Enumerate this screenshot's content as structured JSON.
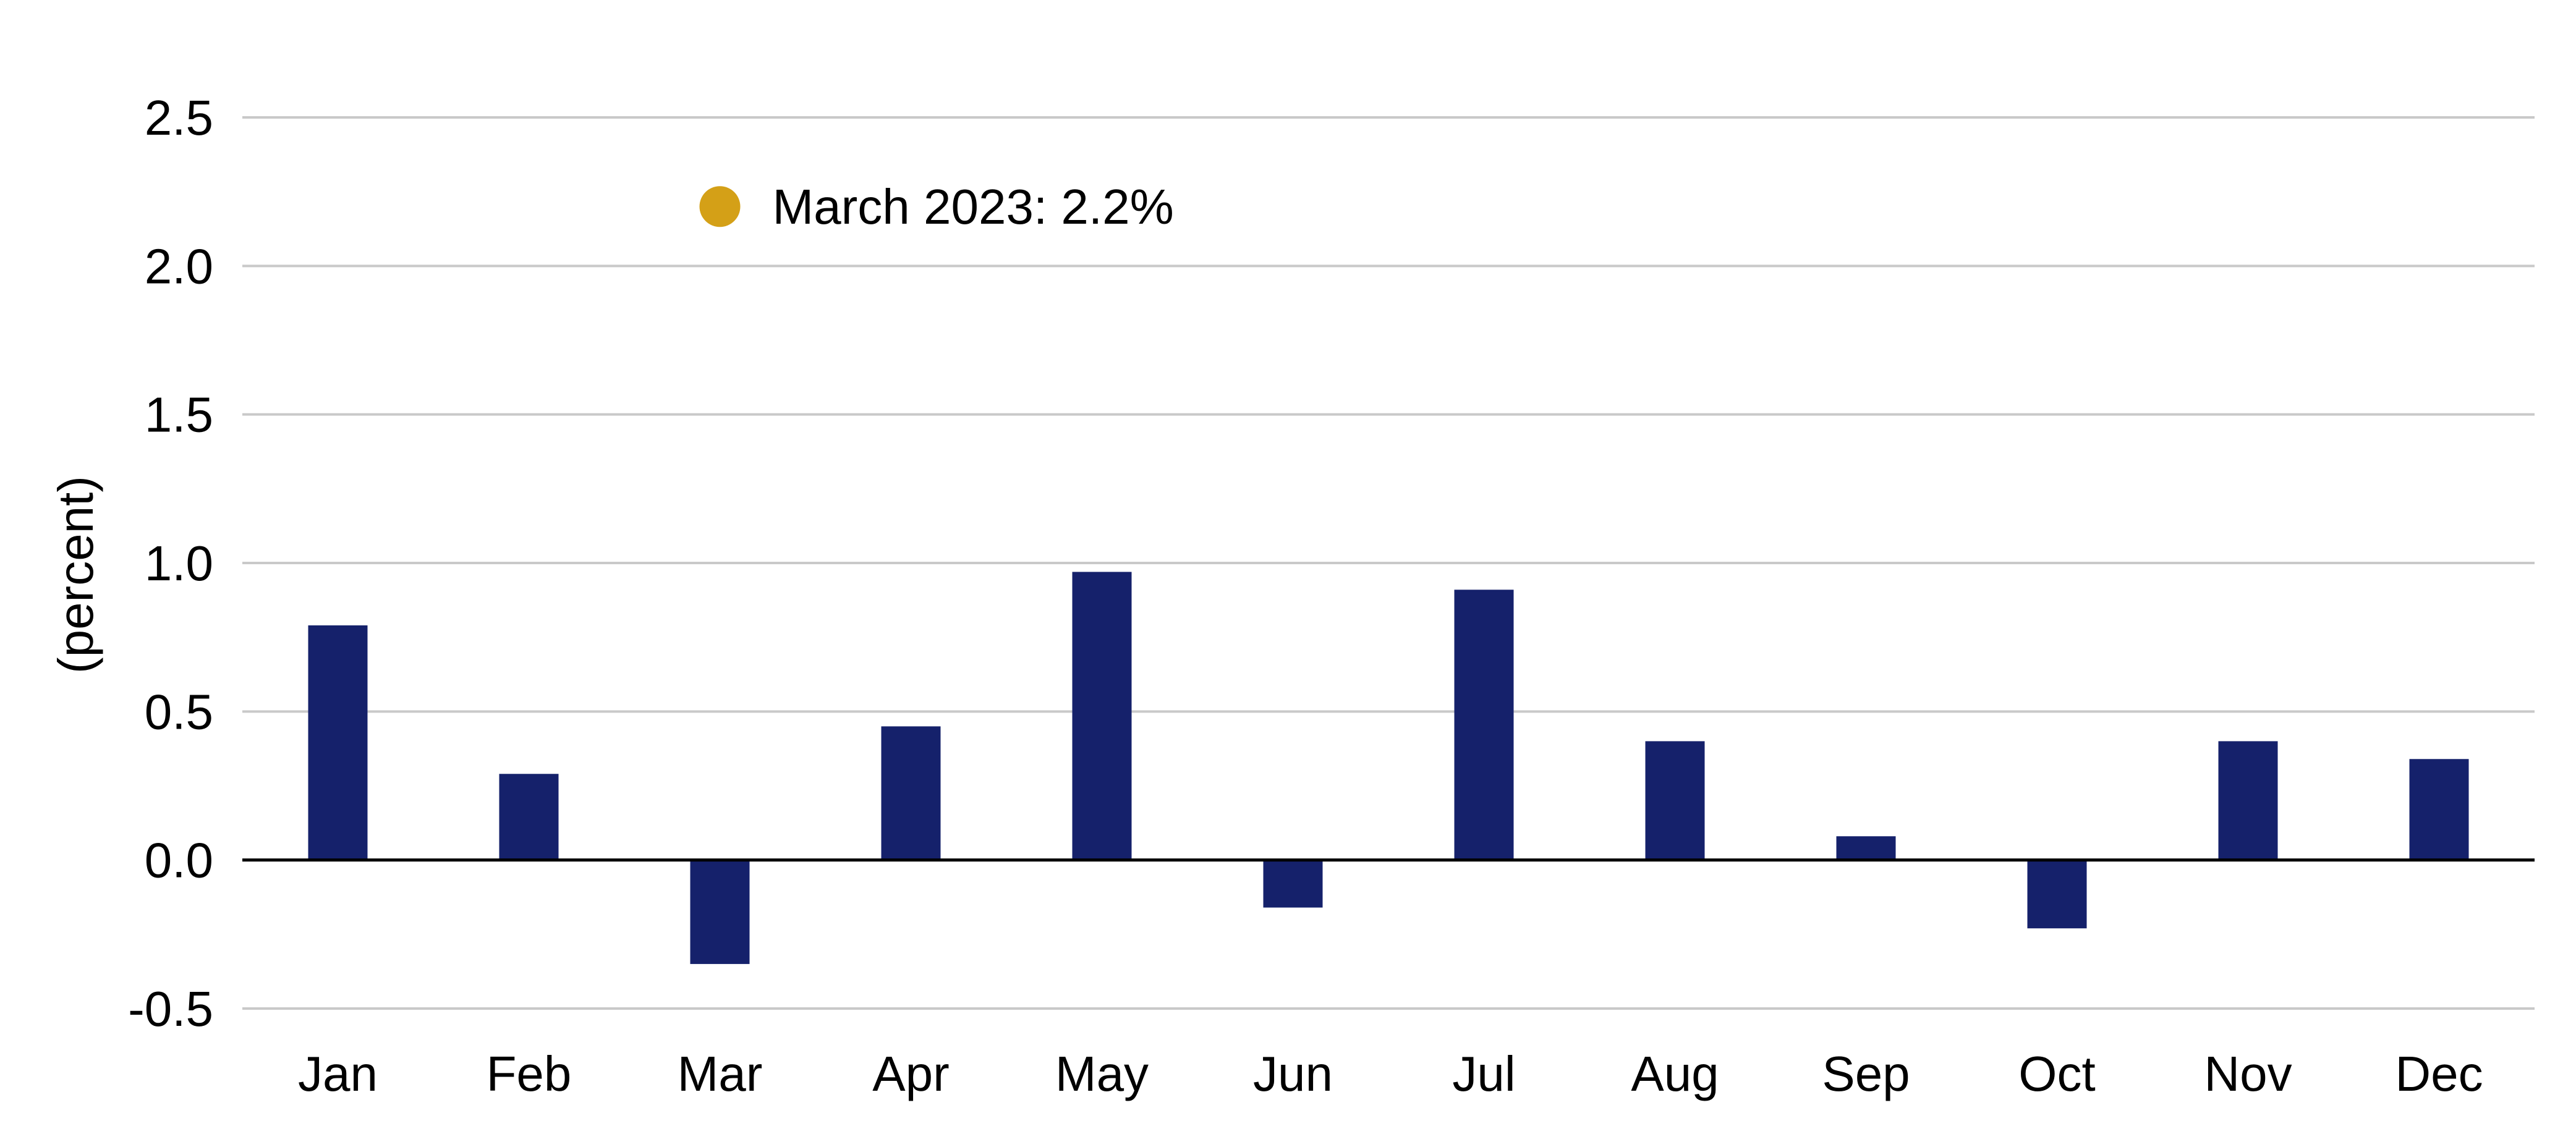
{
  "chart_data": {
    "type": "bar",
    "title": "",
    "xlabel": "",
    "ylabel": "(percent)",
    "ylim": [
      -0.5,
      2.5
    ],
    "yticks": [
      2.5,
      2.0,
      1.5,
      1.0,
      0.5,
      0.0,
      -0.5
    ],
    "ytick_labels": [
      "2.5",
      "2.0",
      "1.5",
      "1.0",
      "0.5",
      "0.0",
      "-0.5"
    ],
    "categories": [
      "Jan",
      "Feb",
      "Mar",
      "Apr",
      "May",
      "Jun",
      "Jul",
      "Aug",
      "Sep",
      "Oct",
      "Nov",
      "Dec"
    ],
    "values": [
      0.79,
      0.29,
      -0.35,
      0.45,
      0.97,
      -0.16,
      0.91,
      0.4,
      0.08,
      -0.23,
      0.4,
      0.34
    ],
    "grid": true,
    "legend": "none",
    "bar_color": "#15216b",
    "annotation": {
      "text": "March 2023: 2.2%",
      "category": "Mar",
      "value": 2.2,
      "marker_color": "#d4a017"
    }
  }
}
